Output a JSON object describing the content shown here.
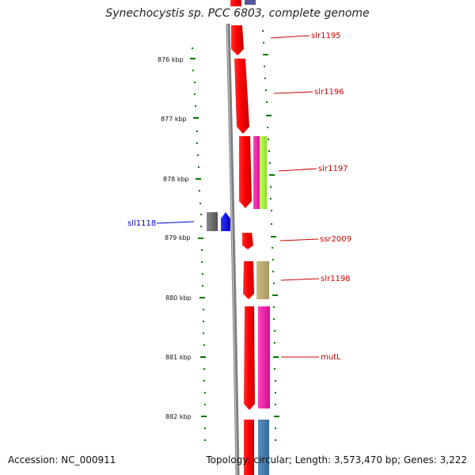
{
  "title": "Synechocystis sp. PCC 6803, complete genome",
  "footer": {
    "accession": "Accession: NC_000911",
    "summary": "Topology: circular; Length: 3,573,470 bp; Genes: 3,222"
  },
  "ruler": [
    "876 kbp",
    "877 kbp",
    "878 kbp",
    "879 kbp",
    "880 kbp",
    "881 kbp",
    "882 kbp"
  ],
  "genes": [
    {
      "label": "slr1195",
      "color": "#cc0000"
    },
    {
      "label": "slr1196",
      "color": "#cc0000"
    },
    {
      "label": "slr1197",
      "color": "#cc0000"
    },
    {
      "label": "ssr2009",
      "color": "#cc0000"
    },
    {
      "label": "slr1198",
      "color": "#cc0000"
    },
    {
      "label": "mutL",
      "color": "#cc0000"
    },
    {
      "label": "sll1118",
      "color": "#0000cc"
    }
  ],
  "colors": {
    "forward_gene": "#ff0000",
    "reverse_gene": "#0000ff",
    "backbone": "#888888",
    "tick": "#007700"
  }
}
